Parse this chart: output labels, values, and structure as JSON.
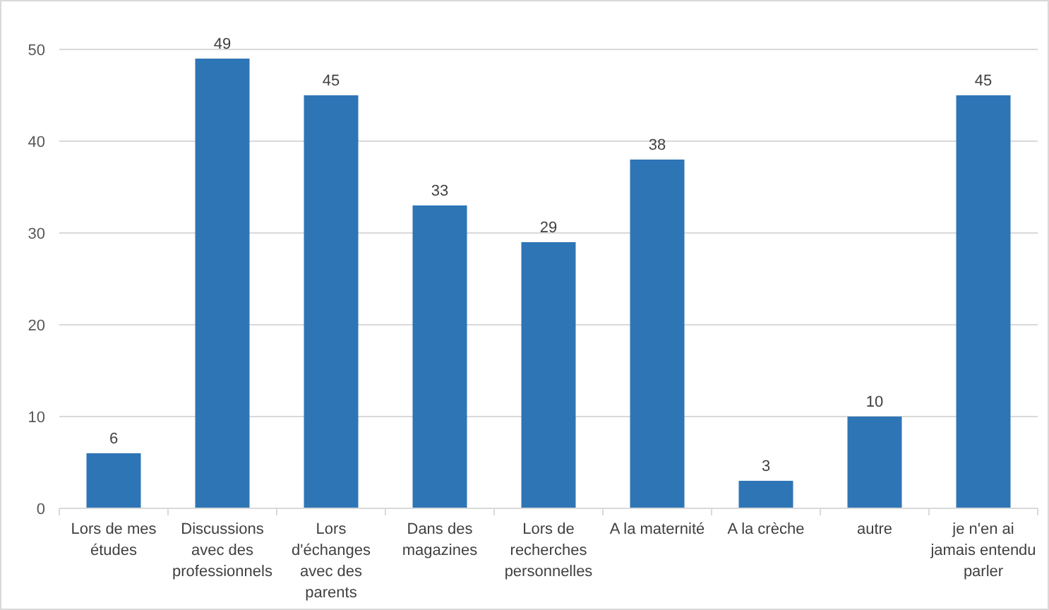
{
  "chart_data": {
    "type": "bar",
    "categories": [
      "Lors de mes études",
      "Discussions avec des professionnels",
      "Lors d'échanges avec des parents",
      "Dans des magazines",
      "Lors de recherches personnelles",
      "A la maternité",
      "A la crèche",
      "autre",
      "je n'en ai jamais entendu parler"
    ],
    "values": [
      6,
      49,
      45,
      33,
      29,
      38,
      3,
      10,
      45
    ],
    "color": "#2e75b6",
    "ylim": [
      0,
      50
    ],
    "yticks": [
      0,
      10,
      20,
      30,
      40,
      50
    ],
    "grid": "y",
    "data_labels": true
  }
}
